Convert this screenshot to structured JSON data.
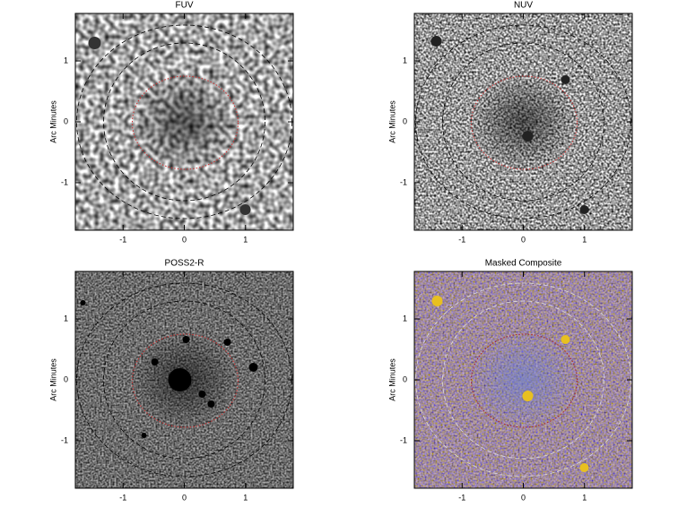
{
  "chart_data": [
    {
      "type": "image",
      "title": "FUV",
      "ylabel": "Arc Minutes",
      "xlim": [
        -1.78,
        1.78
      ],
      "ylim": [
        -1.78,
        1.78
      ],
      "xticks": [
        -1,
        0,
        1
      ],
      "yticks": [
        -1,
        0,
        1
      ]
    },
    {
      "type": "image",
      "title": "NUV",
      "ylabel": "Arc Minutes",
      "xlim": [
        -1.78,
        1.78
      ],
      "ylim": [
        -1.78,
        1.78
      ],
      "xticks": [
        -1,
        0,
        1
      ],
      "yticks": [
        -1,
        0,
        1
      ]
    },
    {
      "type": "image",
      "title": "POSS2-R",
      "ylabel": "Arc Minutes",
      "xlim": [
        -1.78,
        1.78
      ],
      "ylim": [
        -1.78,
        1.78
      ],
      "xticks": [
        -1,
        0,
        1
      ],
      "yticks": [
        -1,
        0,
        1
      ]
    },
    {
      "type": "image",
      "title": "Masked Composite",
      "ylabel": "Arc Minutes",
      "xlim": [
        -1.78,
        1.78
      ],
      "ylim": [
        -1.78,
        1.78
      ],
      "xticks": [
        -1,
        0,
        1
      ],
      "yticks": [
        -1,
        0,
        1
      ]
    }
  ]
}
